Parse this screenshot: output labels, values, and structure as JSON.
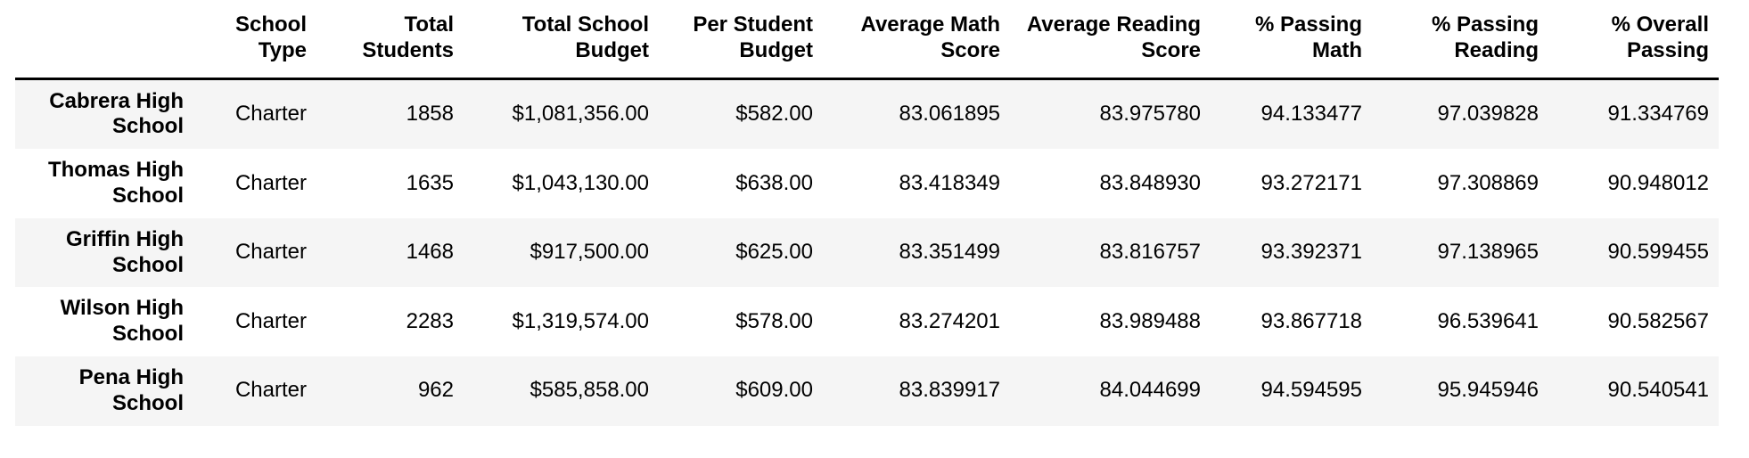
{
  "table": {
    "corner_label": "",
    "columns": [
      "School Type",
      "Total Students",
      "Total School Budget",
      "Per Student Budget",
      "Average Math Score",
      "Average Reading Score",
      "% Passing Math",
      "% Passing Reading",
      "% Overall Passing"
    ],
    "rows": [
      {
        "name": "Cabrera High School",
        "type": "Charter",
        "students": "1858",
        "budget": "$1,081,356.00",
        "per_student_budget": "$582.00",
        "avg_math": "83.061895",
        "avg_reading": "83.975780",
        "pct_math": "94.133477",
        "pct_reading": "97.039828",
        "pct_overall": "91.334769"
      },
      {
        "name": "Thomas High School",
        "type": "Charter",
        "students": "1635",
        "budget": "$1,043,130.00",
        "per_student_budget": "$638.00",
        "avg_math": "83.418349",
        "avg_reading": "83.848930",
        "pct_math": "93.272171",
        "pct_reading": "97.308869",
        "pct_overall": "90.948012"
      },
      {
        "name": "Griffin High School",
        "type": "Charter",
        "students": "1468",
        "budget": "$917,500.00",
        "per_student_budget": "$625.00",
        "avg_math": "83.351499",
        "avg_reading": "83.816757",
        "pct_math": "93.392371",
        "pct_reading": "97.138965",
        "pct_overall": "90.599455"
      },
      {
        "name": "Wilson High School",
        "type": "Charter",
        "students": "2283",
        "budget": "$1,319,574.00",
        "per_student_budget": "$578.00",
        "avg_math": "83.274201",
        "avg_reading": "83.989488",
        "pct_math": "93.867718",
        "pct_reading": "96.539641",
        "pct_overall": "90.582567"
      },
      {
        "name": "Pena High School",
        "type": "Charter",
        "students": "962",
        "budget": "$585,858.00",
        "per_student_budget": "$609.00",
        "avg_math": "83.839917",
        "avg_reading": "84.044699",
        "pct_math": "94.594595",
        "pct_reading": "95.945946",
        "pct_overall": "90.540541"
      }
    ]
  },
  "chart_data": {
    "type": "table",
    "index": [
      "Cabrera High School",
      "Thomas High School",
      "Griffin High School",
      "Wilson High School",
      "Pena High School"
    ],
    "columns": [
      "School Type",
      "Total Students",
      "Total School Budget",
      "Per Student Budget",
      "Average Math Score",
      "Average Reading Score",
      "% Passing Math",
      "% Passing Reading",
      "% Overall Passing"
    ],
    "rows": [
      [
        "Charter",
        1858,
        "$1,081,356.00",
        "$582.00",
        83.061895,
        83.97578,
        94.133477,
        97.039828,
        91.334769
      ],
      [
        "Charter",
        1635,
        "$1,043,130.00",
        "$638.00",
        83.418349,
        83.84893,
        93.272171,
        97.308869,
        90.948012
      ],
      [
        "Charter",
        1468,
        "$917,500.00",
        "$625.00",
        83.351499,
        83.816757,
        93.392371,
        97.138965,
        90.599455
      ],
      [
        "Charter",
        2283,
        "$1,319,574.00",
        "$578.00",
        83.274201,
        83.989488,
        93.867718,
        96.539641,
        90.582567
      ],
      [
        "Charter",
        962,
        "$585,858.00",
        "$609.00",
        83.839917,
        84.044699,
        94.594595,
        95.945946,
        90.540541
      ]
    ],
    "layout": {
      "row_striping": "odd rows shaded",
      "alignment": "right",
      "index_bold": true,
      "header_bold": true
    }
  },
  "colors": {
    "background": "#ffffff",
    "row_stripe": "#f5f5f5",
    "header_border": "#000000",
    "text": "#000000"
  }
}
